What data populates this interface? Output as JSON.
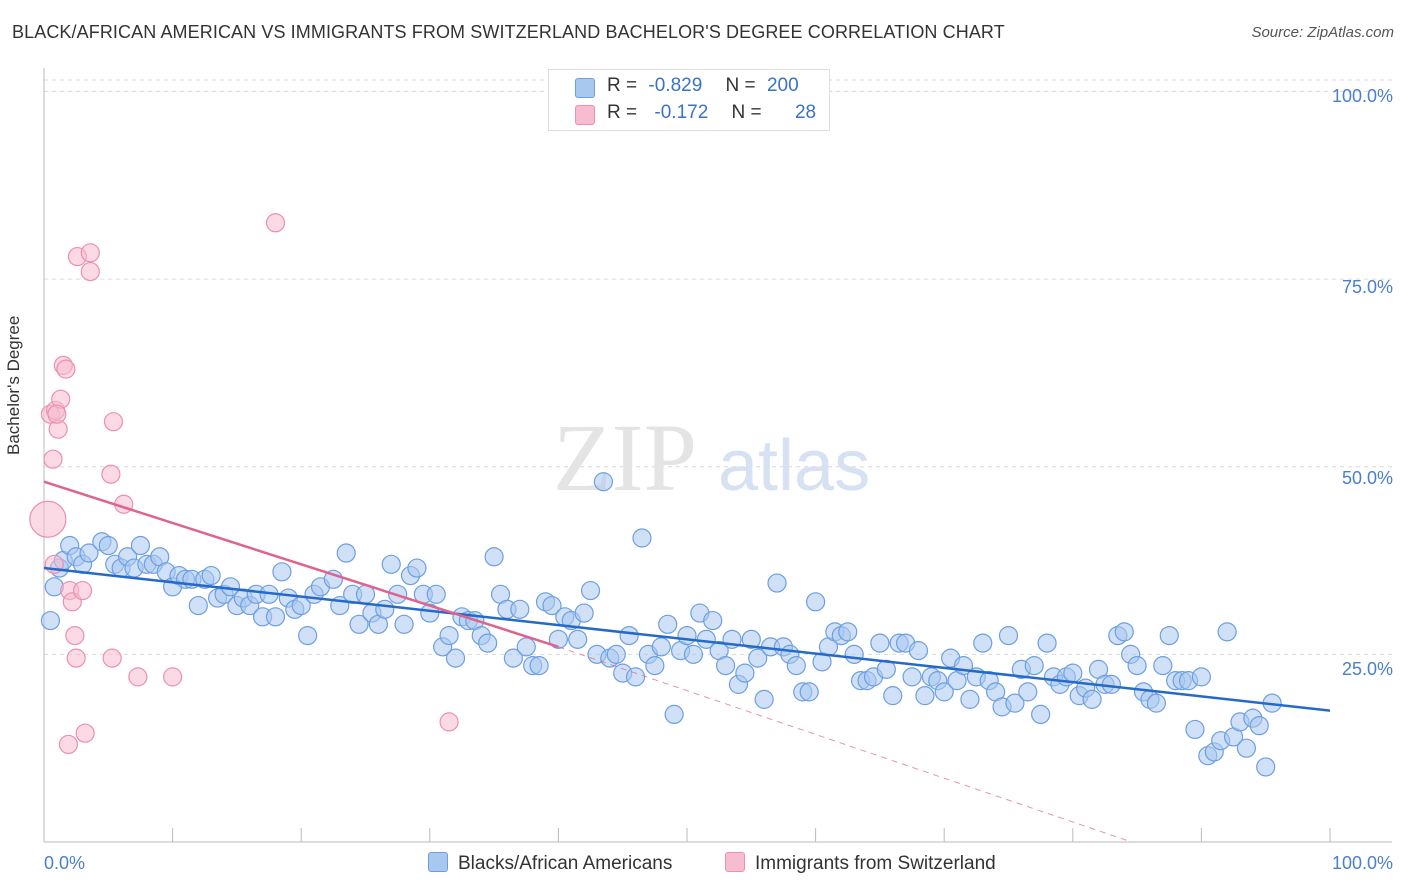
{
  "title": "BLACK/AFRICAN AMERICAN VS IMMIGRANTS FROM SWITZERLAND BACHELOR'S DEGREE CORRELATION CHART",
  "source": "Source: ZipAtlas.com",
  "watermark": {
    "zip": "ZIP",
    "atlas": "atlas"
  },
  "colors": {
    "blue_fill": "#a9c8f0",
    "blue_stroke": "#6d9fe0",
    "blue_line": "#2569c9",
    "pink_fill": "#f7bcd0",
    "pink_stroke": "#ec8fb0",
    "pink_line": "#e0628e",
    "tick_text": "#4a7fd0",
    "grid": "#d9d9d9"
  },
  "legend": {
    "rows": [
      {
        "r_label": "R =",
        "r_value": "-0.829",
        "n_label": "N =",
        "n_value": "200"
      },
      {
        "r_label": "R =",
        "r_value": "-0.172",
        "n_label": "N =",
        "n_value": "28"
      }
    ]
  },
  "bottom_legend": {
    "series1": "Blacks/African Americans",
    "series2": "Immigrants from Switzerland"
  },
  "chart_data": {
    "type": "scatter",
    "title": "BLACK/AFRICAN AMERICAN VS IMMIGRANTS FROM SWITZERLAND BACHELOR'S DEGREE CORRELATION CHART",
    "xlabel": "",
    "ylabel": "Bachelor's Degree",
    "xlim": [
      0,
      100
    ],
    "ylim": [
      0,
      100
    ],
    "x_tick_labels": [
      "0.0%",
      "100.0%"
    ],
    "y_tick_labels": [
      "100.0%",
      "75.0%",
      "50.0%",
      "25.0%"
    ],
    "y_ticks": [
      100,
      75,
      50,
      25
    ],
    "grid": true,
    "legend_position": "top-center",
    "series": [
      {
        "name": "Blacks/African Americans",
        "r": -0.829,
        "n": 200,
        "trend": {
          "x": [
            0,
            100
          ],
          "y": [
            36.5,
            17.5
          ]
        },
        "points": [
          [
            0.5,
            29.5
          ],
          [
            0.8,
            34
          ],
          [
            1.2,
            36.5
          ],
          [
            1.5,
            37.5
          ],
          [
            2,
            39.5
          ],
          [
            2.5,
            38
          ],
          [
            3,
            37
          ],
          [
            3.5,
            38.5
          ],
          [
            4.5,
            40
          ],
          [
            5,
            39.5
          ],
          [
            5.5,
            37
          ],
          [
            6,
            36.5
          ],
          [
            6.5,
            38
          ],
          [
            7,
            36.5
          ],
          [
            7.5,
            39.5
          ],
          [
            8,
            37
          ],
          [
            8.5,
            37
          ],
          [
            9,
            38
          ],
          [
            9.5,
            36
          ],
          [
            10,
            34
          ],
          [
            10.5,
            35.5
          ],
          [
            11,
            35
          ],
          [
            11.5,
            35
          ],
          [
            12,
            31.5
          ],
          [
            12.5,
            35
          ],
          [
            13,
            35.5
          ],
          [
            13.5,
            32.5
          ],
          [
            14,
            33
          ],
          [
            14.5,
            34
          ],
          [
            15,
            31.5
          ],
          [
            15.5,
            32.5
          ],
          [
            16,
            31.5
          ],
          [
            16.5,
            33
          ],
          [
            17,
            30
          ],
          [
            17.5,
            33
          ],
          [
            18,
            30
          ],
          [
            18.5,
            36
          ],
          [
            19,
            32.5
          ],
          [
            19.5,
            31
          ],
          [
            20,
            31.5
          ],
          [
            20.5,
            27.5
          ],
          [
            21,
            33
          ],
          [
            21.5,
            34
          ],
          [
            22.5,
            35
          ],
          [
            23,
            31.5
          ],
          [
            23.5,
            38.5
          ],
          [
            24,
            33
          ],
          [
            24.5,
            29
          ],
          [
            25,
            33
          ],
          [
            25.5,
            30.5
          ],
          [
            26,
            29
          ],
          [
            26.5,
            31
          ],
          [
            27,
            37
          ],
          [
            27.5,
            33
          ],
          [
            28,
            29
          ],
          [
            28.5,
            35.5
          ],
          [
            29,
            36.5
          ],
          [
            29.5,
            33
          ],
          [
            30,
            30.5
          ],
          [
            30.5,
            33
          ],
          [
            31,
            26
          ],
          [
            31.5,
            27.5
          ],
          [
            32,
            24.5
          ],
          [
            32.5,
            30
          ],
          [
            33,
            29.5
          ],
          [
            33.5,
            29.5
          ],
          [
            34,
            27.5
          ],
          [
            34.5,
            26.5
          ],
          [
            35,
            38
          ],
          [
            35.5,
            33
          ],
          [
            36,
            31
          ],
          [
            36.5,
            24.5
          ],
          [
            37,
            31
          ],
          [
            37.5,
            26
          ],
          [
            38,
            23.5
          ],
          [
            38.5,
            23.5
          ],
          [
            39,
            32
          ],
          [
            39.5,
            31.5
          ],
          [
            40,
            27
          ],
          [
            40.5,
            30
          ],
          [
            41,
            29.5
          ],
          [
            41.5,
            27
          ],
          [
            42,
            30.5
          ],
          [
            42.5,
            33.5
          ],
          [
            43,
            25
          ],
          [
            43.5,
            48
          ],
          [
            44,
            24.5
          ],
          [
            44.5,
            25
          ],
          [
            45,
            22.5
          ],
          [
            45.5,
            27.5
          ],
          [
            46,
            22
          ],
          [
            46.5,
            40.5
          ],
          [
            47,
            25
          ],
          [
            47.5,
            23.5
          ],
          [
            48,
            26
          ],
          [
            48.5,
            29
          ],
          [
            49,
            17
          ],
          [
            49.5,
            25.5
          ],
          [
            50,
            27.5
          ],
          [
            50.5,
            25
          ],
          [
            51,
            30.5
          ],
          [
            51.5,
            27
          ],
          [
            52,
            29.5
          ],
          [
            52.5,
            25.5
          ],
          [
            53,
            23.5
          ],
          [
            53.5,
            27
          ],
          [
            54,
            21
          ],
          [
            54.5,
            22.5
          ],
          [
            55,
            27
          ],
          [
            55.5,
            24.5
          ],
          [
            56,
            19
          ],
          [
            56.5,
            26
          ],
          [
            57,
            34.5
          ],
          [
            57.5,
            26
          ],
          [
            58,
            25
          ],
          [
            58.5,
            23.5
          ],
          [
            59,
            20
          ],
          [
            59.5,
            20
          ],
          [
            60,
            32
          ],
          [
            60.5,
            24
          ],
          [
            61,
            26
          ],
          [
            61.5,
            28
          ],
          [
            62,
            27.5
          ],
          [
            62.5,
            28
          ],
          [
            63,
            25
          ],
          [
            63.5,
            21.5
          ],
          [
            64,
            21.5
          ],
          [
            64.5,
            22
          ],
          [
            65,
            26.5
          ],
          [
            65.5,
            23
          ],
          [
            66,
            19.5
          ],
          [
            66.5,
            26.5
          ],
          [
            67,
            26.5
          ],
          [
            67.5,
            22
          ],
          [
            68,
            25.5
          ],
          [
            68.5,
            19.5
          ],
          [
            69,
            22
          ],
          [
            69.5,
            21.5
          ],
          [
            70,
            20
          ],
          [
            70.5,
            24.5
          ],
          [
            71,
            21.5
          ],
          [
            71.5,
            23.5
          ],
          [
            72,
            19
          ],
          [
            72.5,
            22
          ],
          [
            73,
            26.5
          ],
          [
            73.5,
            21.5
          ],
          [
            74,
            20
          ],
          [
            74.5,
            18
          ],
          [
            75,
            27.5
          ],
          [
            75.5,
            18.5
          ],
          [
            76,
            23
          ],
          [
            76.5,
            20
          ],
          [
            77,
            23.5
          ],
          [
            77.5,
            17
          ],
          [
            78,
            26.5
          ],
          [
            78.5,
            22
          ],
          [
            79,
            21
          ],
          [
            79.5,
            22
          ],
          [
            80,
            22.5
          ],
          [
            80.5,
            19.5
          ],
          [
            81,
            20.5
          ],
          [
            81.5,
            19
          ],
          [
            82,
            23
          ],
          [
            82.5,
            21
          ],
          [
            83,
            21
          ],
          [
            83.5,
            27.5
          ],
          [
            84,
            28
          ],
          [
            84.5,
            25
          ],
          [
            85,
            23.5
          ],
          [
            85.5,
            20
          ],
          [
            86,
            19
          ],
          [
            86.5,
            18.5
          ],
          [
            87,
            23.5
          ],
          [
            87.5,
            27.5
          ],
          [
            88,
            21.5
          ],
          [
            88.5,
            21.5
          ],
          [
            89,
            21.5
          ],
          [
            89.5,
            15
          ],
          [
            90,
            22
          ],
          [
            90.5,
            11.5
          ],
          [
            91,
            12
          ],
          [
            91.5,
            13.5
          ],
          [
            92,
            28
          ],
          [
            92.5,
            14
          ],
          [
            93,
            16
          ],
          [
            93.5,
            12.5
          ],
          [
            94,
            16.5
          ],
          [
            94.5,
            15.5
          ],
          [
            95,
            10
          ],
          [
            95.5,
            18.5
          ]
        ]
      },
      {
        "name": "Immigrants from Switzerland",
        "r": -0.172,
        "n": 28,
        "trend": {
          "x": [
            0,
            40
          ],
          "y": [
            48,
            26
          ]
        },
        "trend_extension": {
          "x": [
            40,
            100
          ],
          "y": [
            26,
            -9
          ]
        },
        "points": [
          [
            0.3,
            43
          ],
          [
            0.5,
            57
          ],
          [
            0.7,
            51
          ],
          [
            0.9,
            57.5
          ],
          [
            1.1,
            55
          ],
          [
            1.3,
            59
          ],
          [
            1.5,
            63.5
          ],
          [
            1.7,
            63
          ],
          [
            1.9,
            13
          ],
          [
            2,
            33.5
          ],
          [
            2.2,
            32
          ],
          [
            2.4,
            27.5
          ],
          [
            2.5,
            24.5
          ],
          [
            2.6,
            78
          ],
          [
            3,
            33.5
          ],
          [
            3.2,
            14.5
          ],
          [
            3.6,
            78.5
          ],
          [
            3.6,
            76
          ],
          [
            5.2,
            49
          ],
          [
            5.3,
            24.5
          ],
          [
            5.4,
            56
          ],
          [
            6.2,
            45
          ],
          [
            7.3,
            22
          ],
          [
            10,
            22
          ],
          [
            18,
            82.5
          ],
          [
            31.5,
            16
          ],
          [
            0.8,
            37
          ],
          [
            1,
            57
          ]
        ]
      }
    ]
  }
}
